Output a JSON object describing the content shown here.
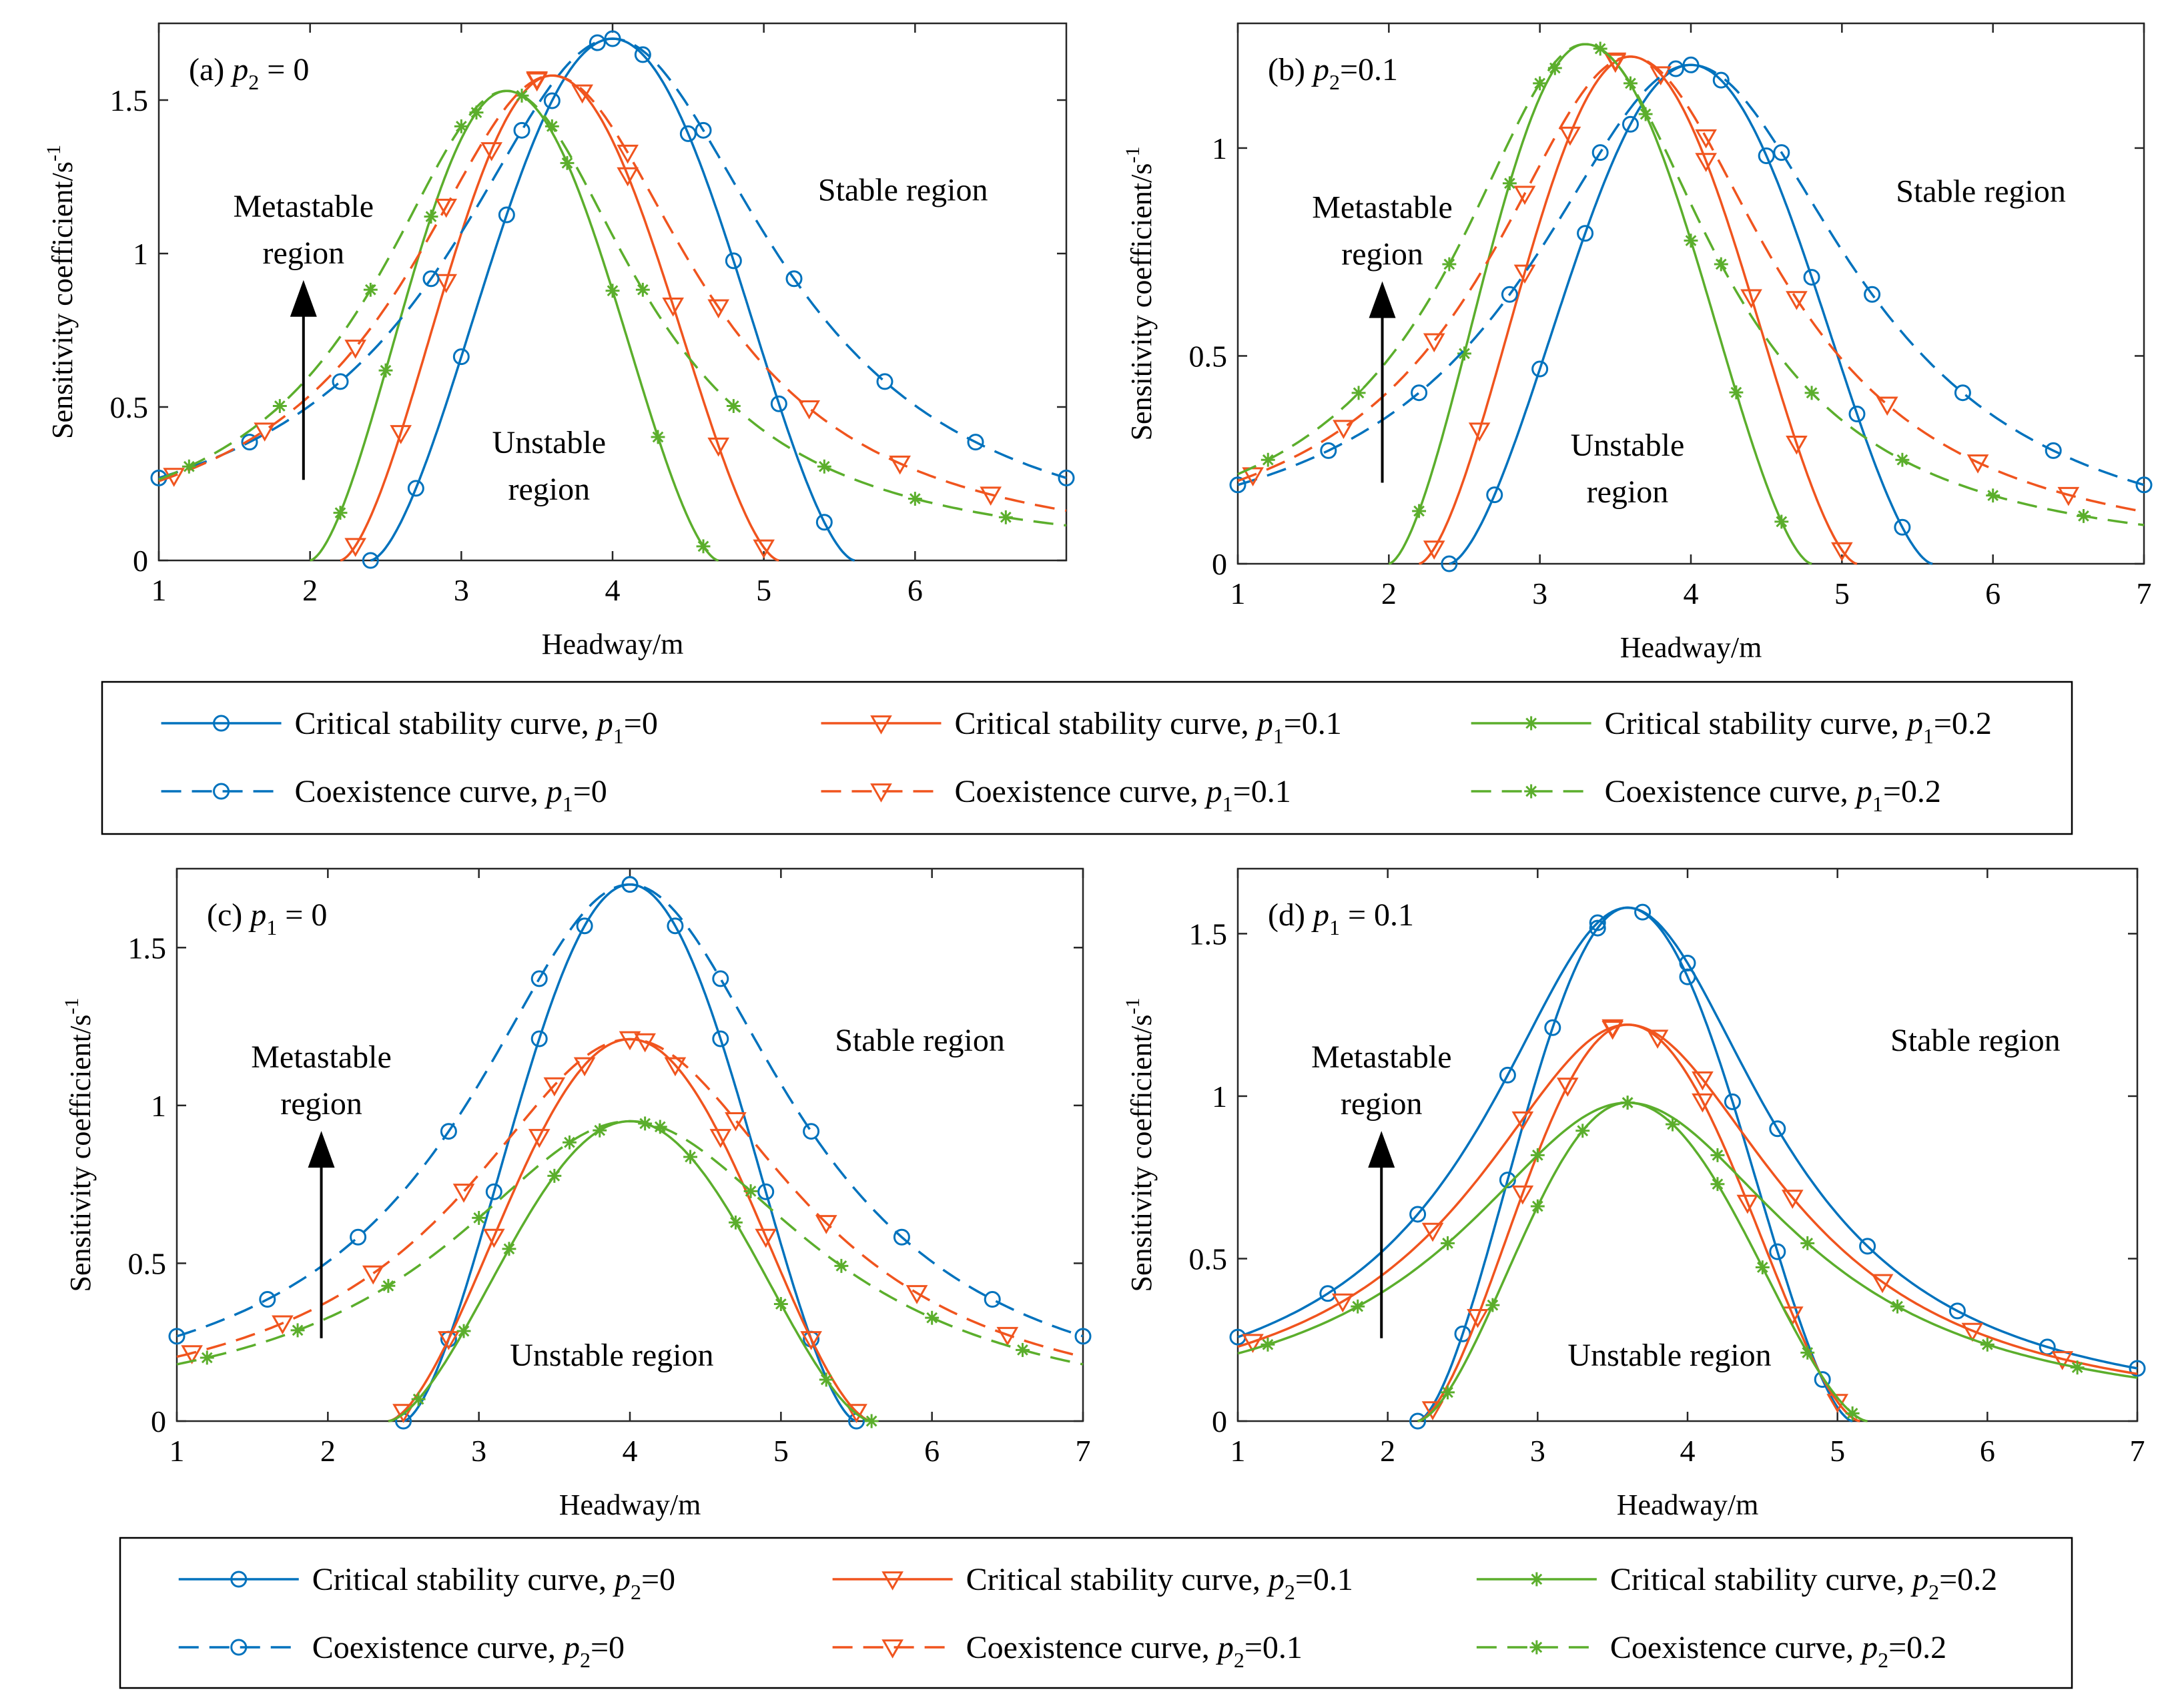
{
  "colors": {
    "blue": "#0072BD",
    "orange": "#F0541E",
    "green": "#5BAE2C"
  },
  "panels": [
    {
      "id": "a",
      "label_prefix": "(a) ",
      "param": "p",
      "sub": "2",
      "label_value": " = 0",
      "xlabel": "Headway/m",
      "ylabel": "Sensitivity coefficient/s",
      "ylabel_sup": "-1",
      "x_ticks": [
        "1",
        "2",
        "3",
        "4",
        "5",
        "6"
      ],
      "y_ticks": [
        "0",
        "0.5",
        "1",
        "1.5"
      ],
      "annotations": {
        "metastable_1": "Metastable",
        "metastable_2": "region",
        "stable": "Stable region",
        "unstable_1": "Unstable",
        "unstable_2": "region"
      }
    },
    {
      "id": "b",
      "label_prefix": "(b)  ",
      "param": "p",
      "sub": "2",
      "label_value": "=0.1",
      "xlabel": "Headway/m",
      "ylabel": "Sensitivity coefficient/s",
      "ylabel_sup": "-1",
      "x_ticks": [
        "1",
        "2",
        "3",
        "4",
        "5",
        "6",
        "7"
      ],
      "y_ticks": [
        "0",
        "0.5",
        "1"
      ],
      "annotations": {
        "metastable_1": "Metastable",
        "metastable_2": "region",
        "stable": "Stable region",
        "unstable_1": "Unstable",
        "unstable_2": "region"
      }
    },
    {
      "id": "c",
      "label_prefix": "(c) ",
      "param": "p",
      "sub": "1",
      "label_value": " = 0",
      "xlabel": "Headway/m",
      "ylabel": "Sensitivity coefficient/s",
      "ylabel_sup": "-1",
      "x_ticks": [
        "1",
        "2",
        "3",
        "4",
        "5",
        "6",
        "7"
      ],
      "y_ticks": [
        "0",
        "0.5",
        "1",
        "1.5"
      ],
      "annotations": {
        "metastable_1": "Metastable",
        "metastable_2": "region",
        "stable": "Stable region",
        "unstable_1": "Unstable region",
        "unstable_2": ""
      }
    },
    {
      "id": "d",
      "label_prefix": "(d) ",
      "param": "p",
      "sub": "1",
      "label_value": " = 0.1",
      "xlabel": "Headway/m",
      "ylabel": "Sensitivity coefficient/s",
      "ylabel_sup": "-1",
      "x_ticks": [
        "1",
        "2",
        "3",
        "4",
        "5",
        "6",
        "7"
      ],
      "y_ticks": [
        "0",
        "0.5",
        "1",
        "1.5"
      ],
      "annotations": {
        "metastable_1": "Metastable",
        "metastable_2": "region",
        "stable": "Stable region",
        "unstable_1": "Unstable region",
        "unstable_2": ""
      }
    }
  ],
  "legends": [
    {
      "param": "p",
      "sub": "1",
      "items": [
        {
          "text": "Critical stability curve, ",
          "value": "=0",
          "style": "solid",
          "color": "blue",
          "marker": "circle"
        },
        {
          "text": "Critical stability curve, ",
          "value": "=0.1",
          "style": "solid",
          "color": "orange",
          "marker": "triangle"
        },
        {
          "text": "Critical stability curve, ",
          "value": "=0.2",
          "style": "solid",
          "color": "green",
          "marker": "star"
        },
        {
          "text": "Coexistence curve, ",
          "value": "=0",
          "style": "dashed",
          "color": "blue",
          "marker": "circle"
        },
        {
          "text": "Coexistence curve, ",
          "value": "=0.1",
          "style": "dashed",
          "color": "orange",
          "marker": "triangle"
        },
        {
          "text": "Coexistence curve, ",
          "value": "=0.2",
          "style": "dashed",
          "color": "green",
          "marker": "star"
        }
      ]
    },
    {
      "param": "p",
      "sub": "2",
      "items": [
        {
          "text": "Critical stability curve, ",
          "value": "=0",
          "style": "solid",
          "color": "blue",
          "marker": "circle"
        },
        {
          "text": "Critical stability curve, ",
          "value": "=0.1",
          "style": "solid",
          "color": "orange",
          "marker": "triangle"
        },
        {
          "text": "Critical stability curve, ",
          "value": "=0.2",
          "style": "solid",
          "color": "green",
          "marker": "star"
        },
        {
          "text": "Coexistence curve, ",
          "value": "=0",
          "style": "dashed",
          "color": "blue",
          "marker": "circle"
        },
        {
          "text": "Coexistence curve, ",
          "value": "=0.1",
          "style": "dashed",
          "color": "orange",
          "marker": "triangle"
        },
        {
          "text": "Coexistence curve, ",
          "value": "=0.2",
          "style": "dashed",
          "color": "green",
          "marker": "star"
        }
      ]
    }
  ],
  "chart_data": [
    {
      "panel": "a",
      "type": "line",
      "title": "(a) p2 = 0",
      "xlabel": "Headway/m",
      "ylabel": "Sensitivity coefficient/s^-1",
      "xlim": [
        1,
        7
      ],
      "ylim": [
        0,
        1.75
      ],
      "series": [
        {
          "name": "Critical stability curve, p1=0",
          "kind": "critical",
          "color": "blue",
          "marker": "circle",
          "peak_x": 4.0,
          "peak_y": 1.7,
          "x_start": 2.4,
          "x_end": 5.6
        },
        {
          "name": "Critical stability curve, p1=0.1",
          "kind": "critical",
          "color": "orange",
          "marker": "triangle",
          "peak_x": 3.6,
          "peak_y": 1.58,
          "x_start": 2.2,
          "x_end": 5.1
        },
        {
          "name": "Critical stability curve, p1=0.2",
          "kind": "critical",
          "color": "green",
          "marker": "star",
          "peak_x": 3.3,
          "peak_y": 1.53,
          "x_start": 2.0,
          "x_end": 4.7
        },
        {
          "name": "Coexistence curve, p1=0",
          "kind": "coexistence",
          "color": "blue",
          "marker": "circle",
          "peak_x": 4.0,
          "peak_y": 1.7,
          "x_start": 1.0,
          "x_end": 7.0,
          "width": 1.3
        },
        {
          "name": "Coexistence curve, p1=0.1",
          "kind": "coexistence",
          "color": "orange",
          "marker": "triangle",
          "peak_x": 3.6,
          "peak_y": 1.58,
          "x_start": 1.0,
          "x_end": 7.0,
          "width": 1.15
        },
        {
          "name": "Coexistence curve, p1=0.2",
          "kind": "coexistence",
          "color": "green",
          "marker": "star",
          "peak_x": 3.3,
          "peak_y": 1.53,
          "x_start": 1.0,
          "x_end": 7.0,
          "width": 1.05
        }
      ]
    },
    {
      "panel": "b",
      "type": "line",
      "title": "(b) p2=0.1",
      "xlabel": "Headway/m",
      "ylabel": "Sensitivity coefficient/s^-1",
      "xlim": [
        1,
        7
      ],
      "ylim": [
        0,
        1.3
      ],
      "series": [
        {
          "name": "Critical stability curve, p1=0",
          "kind": "critical",
          "color": "blue",
          "marker": "circle",
          "peak_x": 4.0,
          "peak_y": 1.2,
          "x_start": 2.4,
          "x_end": 5.6
        },
        {
          "name": "Critical stability curve, p1=0.1",
          "kind": "critical",
          "color": "orange",
          "marker": "triangle",
          "peak_x": 3.6,
          "peak_y": 1.22,
          "x_start": 2.2,
          "x_end": 5.1
        },
        {
          "name": "Critical stability curve, p1=0.2",
          "kind": "critical",
          "color": "green",
          "marker": "star",
          "peak_x": 3.3,
          "peak_y": 1.25,
          "x_start": 2.0,
          "x_end": 4.8
        },
        {
          "name": "Coexistence curve, p1=0",
          "kind": "coexistence",
          "color": "blue",
          "marker": "circle",
          "peak_x": 4.0,
          "peak_y": 1.2,
          "x_start": 1.0,
          "x_end": 7.0,
          "width": 1.3
        },
        {
          "name": "Coexistence curve, p1=0.1",
          "kind": "coexistence",
          "color": "orange",
          "marker": "triangle",
          "peak_x": 3.6,
          "peak_y": 1.22,
          "x_start": 1.0,
          "x_end": 7.0,
          "width": 1.15
        },
        {
          "name": "Coexistence curve, p1=0.2",
          "kind": "coexistence",
          "color": "green",
          "marker": "star",
          "peak_x": 3.3,
          "peak_y": 1.25,
          "x_start": 1.0,
          "x_end": 7.0,
          "width": 1.05
        }
      ]
    },
    {
      "panel": "c",
      "type": "line",
      "title": "(c) p1 = 0",
      "xlabel": "Headway/m",
      "ylabel": "Sensitivity coefficient/s^-1",
      "xlim": [
        1,
        7
      ],
      "ylim": [
        0,
        1.75
      ],
      "series": [
        {
          "name": "Critical stability curve, p2=0",
          "kind": "critical",
          "color": "blue",
          "marker": "circle",
          "peak_x": 4.0,
          "peak_y": 1.7,
          "x_start": 2.5,
          "x_end": 5.5
        },
        {
          "name": "Critical stability curve, p2=0.1",
          "kind": "critical",
          "color": "orange",
          "marker": "triangle",
          "peak_x": 4.0,
          "peak_y": 1.21,
          "x_start": 2.4,
          "x_end": 5.6
        },
        {
          "name": "Critical stability curve, p2=0.2",
          "kind": "critical",
          "color": "green",
          "marker": "star",
          "peak_x": 4.0,
          "peak_y": 0.95,
          "x_start": 2.4,
          "x_end": 5.6
        },
        {
          "name": "Coexistence curve, p2=0",
          "kind": "coexistence",
          "color": "blue",
          "marker": "circle",
          "peak_x": 4.0,
          "peak_y": 1.7,
          "x_start": 1.0,
          "x_end": 7.0,
          "width": 1.3
        },
        {
          "name": "Coexistence curve, p2=0.1",
          "kind": "coexistence",
          "color": "orange",
          "marker": "triangle",
          "peak_x": 4.0,
          "peak_y": 1.21,
          "x_start": 1.0,
          "x_end": 7.0,
          "width": 1.35
        },
        {
          "name": "Coexistence curve, p2=0.2",
          "kind": "coexistence",
          "color": "green",
          "marker": "star",
          "peak_x": 4.0,
          "peak_y": 0.95,
          "x_start": 1.0,
          "x_end": 7.0,
          "width": 1.45
        }
      ]
    },
    {
      "panel": "d",
      "type": "line",
      "title": "(d) p1 = 0.1",
      "xlabel": "Headway/m",
      "ylabel": "Sensitivity coefficient/s^-1",
      "xlim": [
        1,
        7
      ],
      "ylim": [
        0,
        1.7
      ],
      "series": [
        {
          "name": "Critical stability curve, p2=0",
          "kind": "critical",
          "color": "blue",
          "marker": "circle",
          "peak_x": 3.6,
          "peak_y": 1.58,
          "x_start": 2.2,
          "x_end": 5.1
        },
        {
          "name": "Critical stability curve, p2=0.1",
          "kind": "critical",
          "color": "orange",
          "marker": "triangle",
          "peak_x": 3.6,
          "peak_y": 1.22,
          "x_start": 2.2,
          "x_end": 5.15
        },
        {
          "name": "Critical stability curve, p2=0.2",
          "kind": "critical",
          "color": "green",
          "marker": "star",
          "peak_x": 3.6,
          "peak_y": 0.98,
          "x_start": 2.2,
          "x_end": 5.2
        },
        {
          "name": "Coexistence curve, p2=0",
          "kind": "coexistence_solid",
          "color": "blue",
          "marker": "circle",
          "peak_x": 3.6,
          "peak_y": 1.58,
          "x_start": 1.0,
          "x_end": 7.0,
          "width": 1.15
        },
        {
          "name": "Coexistence curve, p2=0.1",
          "kind": "coexistence_solid",
          "color": "orange",
          "marker": "triangle",
          "peak_x": 3.6,
          "peak_y": 1.22,
          "x_start": 1.0,
          "x_end": 7.0,
          "width": 1.25
        },
        {
          "name": "Coexistence curve, p2=0.2",
          "kind": "coexistence_solid",
          "color": "green",
          "marker": "star",
          "peak_x": 3.6,
          "peak_y": 0.98,
          "x_start": 1.0,
          "x_end": 7.0,
          "width": 1.35
        }
      ]
    }
  ]
}
